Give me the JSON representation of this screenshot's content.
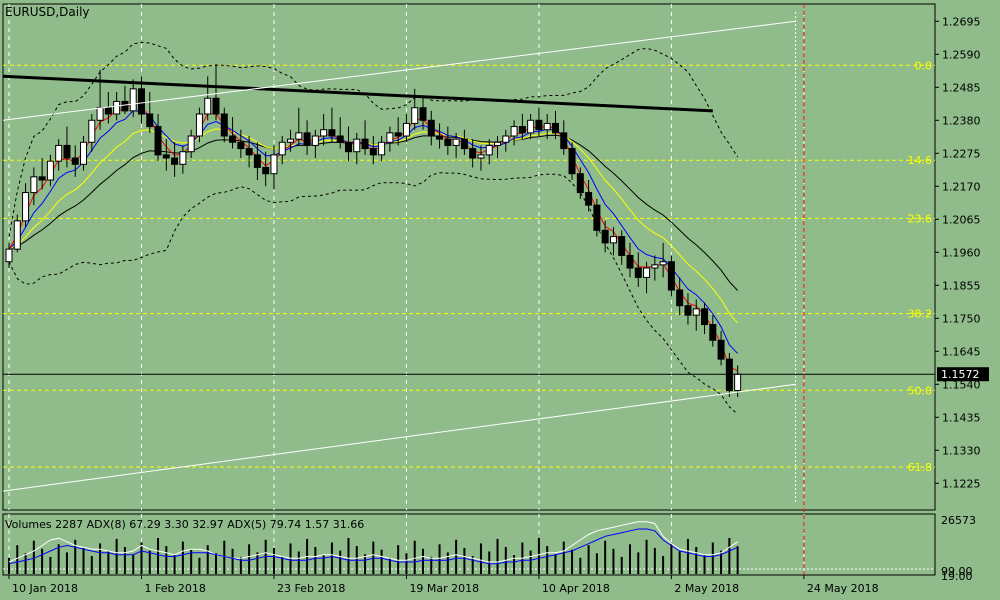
{
  "window": {
    "title": "EURUSD,Daily"
  },
  "colors": {
    "background": "#8fbc8a",
    "grid": "#ffffff",
    "fib": "#ffff00",
    "candle": "#000000",
    "ma_red": "#ff0000",
    "ma_blue": "#0000ff",
    "ma_yellow": "#ffff00",
    "ma_black": "#000000",
    "price_box": "#000000",
    "vline_red": "#ff0000"
  },
  "chart_data": {
    "type": "candlestick",
    "symbol": "EURUSD",
    "timeframe": "Daily",
    "ylim": [
      1.114,
      1.275
    ],
    "y_ticks": [
      "1.2695",
      "1.2590",
      "1.2485",
      "1.2380",
      "1.2275",
      "1.2170",
      "1.2065",
      "1.1960",
      "1.1855",
      "1.1750",
      "1.1645",
      "1.1540",
      "1.1435",
      "1.1330",
      "1.1225"
    ],
    "x_ticks": [
      {
        "label": "10 Jan 2018",
        "bar": 0
      },
      {
        "label": "1 Feb 2018",
        "bar": 16
      },
      {
        "label": "23 Feb 2018",
        "bar": 32
      },
      {
        "label": "19 Mar 2018",
        "bar": 48
      },
      {
        "label": "10 Apr 2018",
        "bar": 64
      },
      {
        "label": "2 May 2018",
        "bar": 80
      },
      {
        "label": "24 May 2018",
        "bar": 96
      }
    ],
    "current_price": "1.1572",
    "fib_levels": [
      {
        "label": "0.0",
        "price": 1.2555
      },
      {
        "label": "14.6",
        "price": 1.2253
      },
      {
        "label": "23.6",
        "price": 1.2068
      },
      {
        "label": "38.2",
        "price": 1.1765
      },
      {
        "label": "50.0",
        "price": 1.1521
      },
      {
        "label": "61.8",
        "price": 1.1277
      }
    ],
    "candles": [
      [
        1.193,
        1.199,
        1.191,
        1.197
      ],
      [
        1.197,
        1.208,
        1.196,
        1.206
      ],
      [
        1.206,
        1.218,
        1.204,
        1.215
      ],
      [
        1.215,
        1.223,
        1.211,
        1.22
      ],
      [
        1.22,
        1.226,
        1.216,
        1.219
      ],
      [
        1.219,
        1.227,
        1.217,
        1.225
      ],
      [
        1.225,
        1.232,
        1.222,
        1.23
      ],
      [
        1.23,
        1.236,
        1.223,
        1.226
      ],
      [
        1.226,
        1.23,
        1.22,
        1.224
      ],
      [
        1.224,
        1.233,
        1.222,
        1.231
      ],
      [
        1.231,
        1.24,
        1.228,
        1.238
      ],
      [
        1.238,
        1.254,
        1.235,
        1.242
      ],
      [
        1.242,
        1.247,
        1.237,
        1.24
      ],
      [
        1.24,
        1.247,
        1.238,
        1.244
      ],
      [
        1.244,
        1.249,
        1.24,
        1.241
      ],
      [
        1.241,
        1.251,
        1.239,
        1.248
      ],
      [
        1.248,
        1.252,
        1.237,
        1.24
      ],
      [
        1.24,
        1.247,
        1.234,
        1.236
      ],
      [
        1.236,
        1.24,
        1.225,
        1.227
      ],
      [
        1.227,
        1.232,
        1.222,
        1.226
      ],
      [
        1.226,
        1.231,
        1.22,
        1.224
      ],
      [
        1.224,
        1.23,
        1.221,
        1.228
      ],
      [
        1.228,
        1.235,
        1.226,
        1.233
      ],
      [
        1.233,
        1.242,
        1.231,
        1.24
      ],
      [
        1.24,
        1.252,
        1.238,
        1.245
      ],
      [
        1.245,
        1.256,
        1.238,
        1.24
      ],
      [
        1.24,
        1.242,
        1.231,
        1.233
      ],
      [
        1.233,
        1.239,
        1.229,
        1.231
      ],
      [
        1.231,
        1.235,
        1.226,
        1.229
      ],
      [
        1.229,
        1.233,
        1.223,
        1.227
      ],
      [
        1.227,
        1.231,
        1.219,
        1.223
      ],
      [
        1.223,
        1.228,
        1.217,
        1.221
      ],
      [
        1.221,
        1.23,
        1.216,
        1.227
      ],
      [
        1.227,
        1.233,
        1.224,
        1.231
      ],
      [
        1.231,
        1.235,
        1.228,
        1.232
      ],
      [
        1.232,
        1.242,
        1.23,
        1.234
      ],
      [
        1.234,
        1.238,
        1.227,
        1.23
      ],
      [
        1.23,
        1.235,
        1.226,
        1.233
      ],
      [
        1.233,
        1.24,
        1.23,
        1.235
      ],
      [
        1.235,
        1.242,
        1.231,
        1.233
      ],
      [
        1.233,
        1.239,
        1.229,
        1.231
      ],
      [
        1.231,
        1.236,
        1.225,
        1.228
      ],
      [
        1.228,
        1.234,
        1.224,
        1.232
      ],
      [
        1.232,
        1.238,
        1.227,
        1.229
      ],
      [
        1.229,
        1.233,
        1.224,
        1.227
      ],
      [
        1.227,
        1.233,
        1.225,
        1.231
      ],
      [
        1.231,
        1.236,
        1.228,
        1.234
      ],
      [
        1.234,
        1.239,
        1.23,
        1.233
      ],
      [
        1.233,
        1.24,
        1.231,
        1.237
      ],
      [
        1.237,
        1.248,
        1.235,
        1.242
      ],
      [
        1.242,
        1.246,
        1.235,
        1.238
      ],
      [
        1.238,
        1.241,
        1.23,
        1.233
      ],
      [
        1.233,
        1.237,
        1.229,
        1.232
      ],
      [
        1.232,
        1.236,
        1.227,
        1.23
      ],
      [
        1.23,
        1.234,
        1.226,
        1.232
      ],
      [
        1.232,
        1.235,
        1.227,
        1.229
      ],
      [
        1.229,
        1.232,
        1.223,
        1.226
      ],
      [
        1.226,
        1.23,
        1.222,
        1.227
      ],
      [
        1.227,
        1.232,
        1.224,
        1.23
      ],
      [
        1.23,
        1.233,
        1.226,
        1.231
      ],
      [
        1.231,
        1.235,
        1.228,
        1.233
      ],
      [
        1.233,
        1.238,
        1.23,
        1.236
      ],
      [
        1.236,
        1.24,
        1.232,
        1.234
      ],
      [
        1.234,
        1.24,
        1.232,
        1.238
      ],
      [
        1.238,
        1.242,
        1.233,
        1.235
      ],
      [
        1.235,
        1.24,
        1.232,
        1.237
      ],
      [
        1.237,
        1.241,
        1.232,
        1.234
      ],
      [
        1.234,
        1.238,
        1.227,
        1.229
      ],
      [
        1.229,
        1.231,
        1.219,
        1.221
      ],
      [
        1.221,
        1.223,
        1.213,
        1.215
      ],
      [
        1.215,
        1.219,
        1.209,
        1.211
      ],
      [
        1.211,
        1.213,
        1.201,
        1.203
      ],
      [
        1.203,
        1.206,
        1.196,
        1.199
      ],
      [
        1.199,
        1.204,
        1.195,
        1.201
      ],
      [
        1.201,
        1.203,
        1.192,
        1.195
      ],
      [
        1.195,
        1.199,
        1.188,
        1.191
      ],
      [
        1.191,
        1.196,
        1.185,
        1.188
      ],
      [
        1.188,
        1.193,
        1.183,
        1.191
      ],
      [
        1.191,
        1.195,
        1.187,
        1.192
      ],
      [
        1.192,
        1.199,
        1.188,
        1.193
      ],
      [
        1.193,
        1.195,
        1.182,
        1.184
      ],
      [
        1.184,
        1.188,
        1.176,
        1.179
      ],
      [
        1.179,
        1.183,
        1.173,
        1.176
      ],
      [
        1.176,
        1.181,
        1.171,
        1.178
      ],
      [
        1.178,
        1.18,
        1.17,
        1.173
      ],
      [
        1.173,
        1.176,
        1.166,
        1.168
      ],
      [
        1.168,
        1.171,
        1.16,
        1.162
      ],
      [
        1.162,
        1.164,
        1.15,
        1.152
      ],
      [
        1.152,
        1.16,
        1.15,
        1.1572
      ]
    ],
    "indicator_label": "Volumes 2287 ADX(8) 67.29 3.30 32.97 ADX(5) 79.74 1.57 31.66",
    "indicator_ticks": [
      "26573",
      "99.00",
      "19.00"
    ],
    "indicator_white": [
      12,
      16,
      20,
      24,
      30,
      36,
      38,
      34,
      30,
      28,
      26,
      26,
      24,
      22,
      22,
      24,
      30,
      26,
      24,
      22,
      20,
      24,
      26,
      26,
      24,
      20,
      18,
      16,
      16,
      18,
      20,
      22,
      20,
      18,
      16,
      16,
      18,
      18,
      20,
      20,
      18,
      16,
      16,
      18,
      20,
      18,
      16,
      14,
      14,
      16,
      18,
      16,
      16,
      18,
      20,
      18,
      16,
      14,
      12,
      12,
      14,
      16,
      16,
      18,
      20,
      22,
      22,
      24,
      30,
      36,
      42,
      46,
      48,
      50,
      52,
      54,
      56,
      56,
      54,
      40,
      32,
      26,
      24,
      22,
      20,
      20,
      22,
      28,
      34
    ],
    "indicator_blue": [
      10,
      12,
      14,
      16,
      20,
      24,
      28,
      30,
      28,
      26,
      24,
      22,
      22,
      20,
      20,
      20,
      24,
      22,
      20,
      18,
      18,
      20,
      22,
      22,
      22,
      20,
      18,
      16,
      14,
      14,
      16,
      18,
      18,
      16,
      14,
      14,
      14,
      16,
      16,
      18,
      16,
      14,
      14,
      14,
      16,
      16,
      14,
      12,
      12,
      12,
      14,
      14,
      14,
      14,
      16,
      16,
      14,
      12,
      10,
      10,
      12,
      12,
      14,
      14,
      16,
      18,
      20,
      22,
      24,
      28,
      32,
      36,
      40,
      42,
      44,
      46,
      48,
      48,
      46,
      36,
      30,
      24,
      22,
      20,
      18,
      18,
      20,
      24,
      28
    ]
  }
}
